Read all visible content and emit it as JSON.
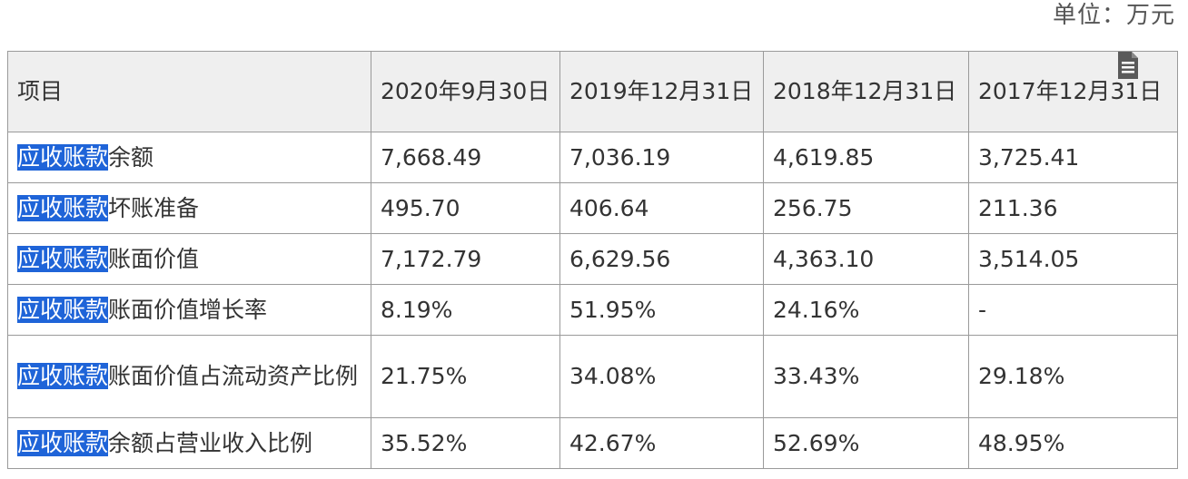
{
  "unit": "单位：万元",
  "header": {
    "item": "项目",
    "cols": [
      "2020年9月30日",
      "2019年12月31日",
      "2018年12月31日",
      "2017年12月31日"
    ]
  },
  "highlight_term": "应收账款",
  "rows": [
    {
      "suffix": "余额",
      "values": [
        "7,668.49",
        "7,036.19",
        "4,619.85",
        "3,725.41"
      ]
    },
    {
      "suffix": "坏账准备",
      "values": [
        "495.70",
        "406.64",
        "256.75",
        "211.36"
      ]
    },
    {
      "suffix": "账面价值",
      "values": [
        "7,172.79",
        "6,629.56",
        "4,363.10",
        "3,514.05"
      ]
    },
    {
      "suffix": "账面价值增长率",
      "values": [
        "8.19%",
        "51.95%",
        "24.16%",
        "-"
      ]
    },
    {
      "suffix": "账面价值占流动资产比例",
      "values": [
        "21.75%",
        "34.08%",
        "33.43%",
        "29.18%"
      ]
    },
    {
      "suffix": "余额占营业收入比例",
      "values": [
        "35.52%",
        "42.67%",
        "52.69%",
        "48.95%"
      ]
    }
  ],
  "colors": {
    "highlight_bg": "#1f64d8",
    "header_bg": "#efefef",
    "border": "#9a9a9a"
  },
  "icons": {
    "doc": "document-icon"
  }
}
